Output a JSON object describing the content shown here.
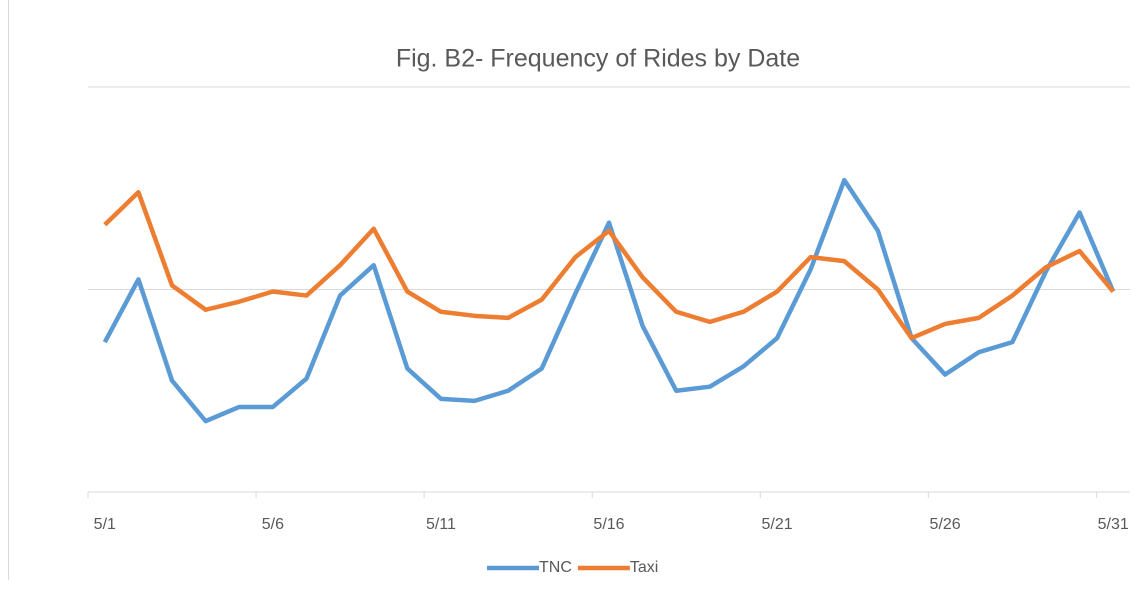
{
  "chart_data": {
    "type": "line",
    "title": "Fig. B2- Frequency of Rides by Date",
    "categories": [
      "5/1",
      null,
      null,
      null,
      null,
      "5/6",
      null,
      null,
      null,
      null,
      "5/11",
      null,
      null,
      null,
      null,
      "5/16",
      null,
      null,
      null,
      null,
      "5/21",
      null,
      null,
      null,
      null,
      "5/26",
      null,
      null,
      null,
      null,
      "5/31"
    ],
    "series": [
      {
        "name": "TNC",
        "color": "#5b9bd5",
        "values": [
          0.74,
          1.05,
          0.55,
          0.35,
          0.42,
          0.42,
          0.56,
          0.97,
          1.12,
          0.61,
          0.46,
          0.45,
          0.5,
          0.61,
          0.98,
          1.33,
          0.82,
          0.5,
          0.52,
          0.62,
          0.76,
          1.1,
          1.54,
          1.29,
          0.76,
          0.58,
          0.69,
          0.74,
          1.09,
          1.38,
          0.99
        ]
      },
      {
        "name": "Taxi",
        "color": "#ed7d31",
        "values": [
          1.32,
          1.48,
          1.02,
          0.9,
          0.94,
          0.99,
          0.97,
          1.12,
          1.3,
          0.99,
          0.89,
          0.87,
          0.86,
          0.95,
          1.16,
          1.29,
          1.06,
          0.89,
          0.84,
          0.89,
          0.99,
          1.16,
          1.14,
          1.0,
          0.76,
          0.83,
          0.86,
          0.97,
          1.11,
          1.19,
          0.99
        ]
      }
    ],
    "ylim": [
      0,
      2
    ],
    "yticks": [
      0,
      1,
      2
    ],
    "grid": true,
    "legend": "bottom"
  }
}
